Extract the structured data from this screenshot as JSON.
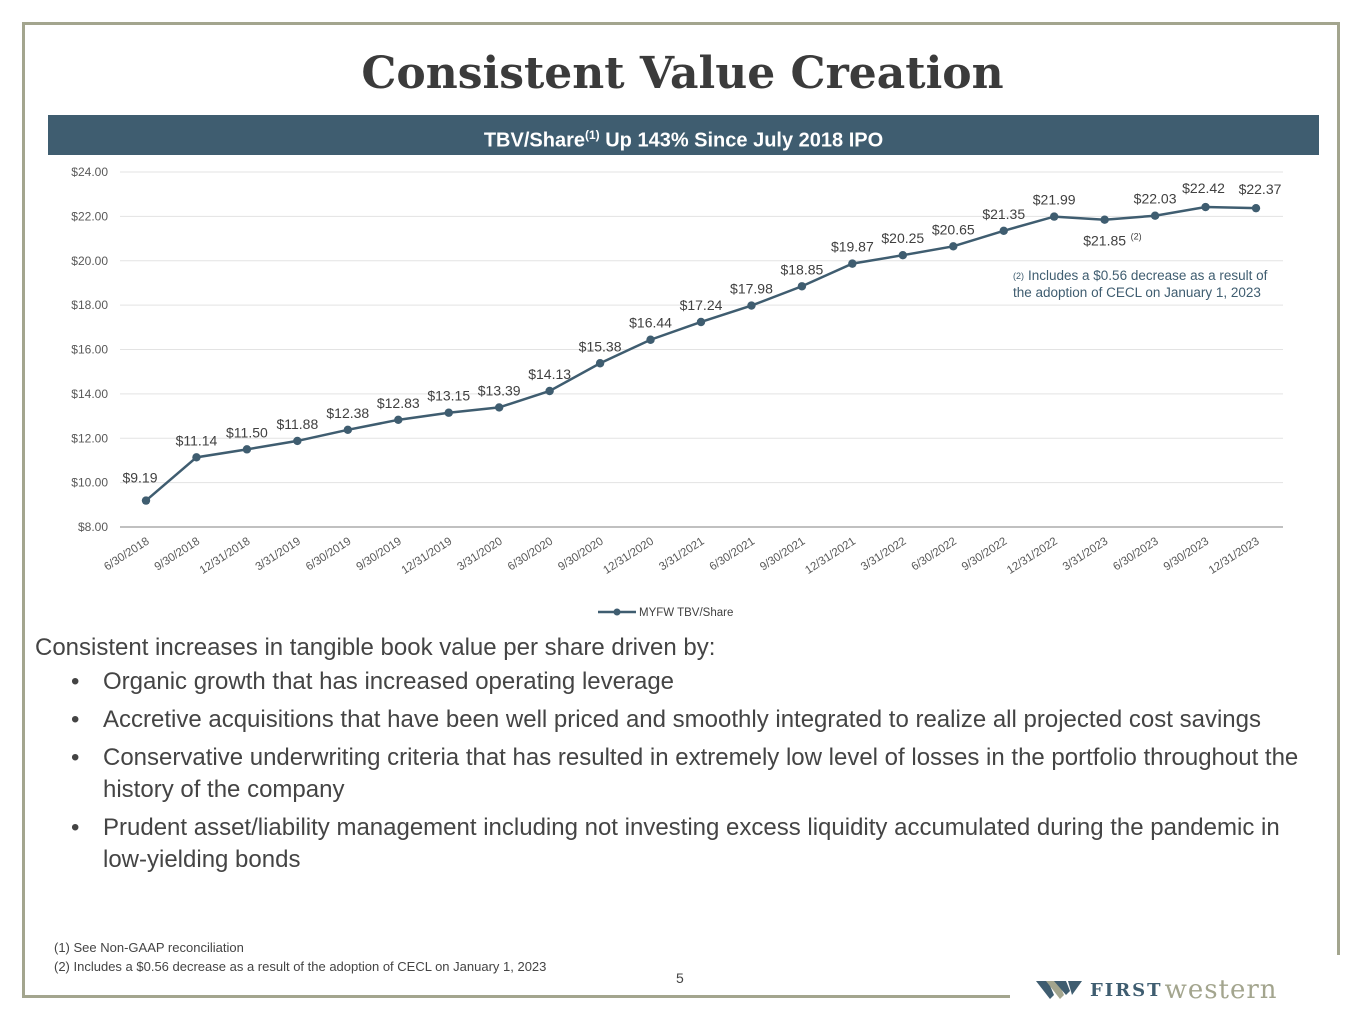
{
  "title": "Consistent Value Creation",
  "banner": {
    "prefix": "TBV/Share",
    "sup": "(1)",
    "suffix": " Up 143% Since July 2018 IPO"
  },
  "chart_data": {
    "type": "line",
    "title": "TBV/Share Up 143% Since July 2018 IPO",
    "xlabel": "",
    "ylabel": "",
    "ylim": [
      8,
      24
    ],
    "y_ticks": [
      "$8.00",
      "$10.00",
      "$12.00",
      "$14.00",
      "$16.00",
      "$18.00",
      "$20.00",
      "$22.00",
      "$24.00"
    ],
    "y_tick_values": [
      8,
      10,
      12,
      14,
      16,
      18,
      20,
      22,
      24
    ],
    "categories": [
      "6/30/2018",
      "9/30/2018",
      "12/31/2018",
      "3/31/2019",
      "6/30/2019",
      "9/30/2019",
      "12/31/2019",
      "3/31/2020",
      "6/30/2020",
      "9/30/2020",
      "12/31/2020",
      "3/31/2021",
      "6/30/2021",
      "9/30/2021",
      "12/31/2021",
      "3/31/2022",
      "6/30/2022",
      "9/30/2022",
      "12/31/2022",
      "3/31/2023",
      "6/30/2023",
      "9/30/2023",
      "12/31/2023"
    ],
    "series": [
      {
        "name": "MYFW TBV/Share",
        "color": "#3f5d70",
        "values": [
          9.19,
          11.14,
          11.5,
          11.88,
          12.38,
          12.83,
          13.15,
          13.39,
          14.13,
          15.38,
          16.44,
          17.24,
          17.98,
          18.85,
          19.87,
          20.25,
          20.65,
          21.35,
          21.99,
          21.85,
          22.03,
          22.42,
          22.37
        ],
        "labels": [
          "$9.19",
          "$11.14",
          "$11.50",
          "$11.88",
          "$12.38",
          "$12.83",
          "$13.15",
          "$13.39",
          "$14.13",
          "$15.38",
          "$16.44",
          "$17.24",
          "$17.98",
          "$18.85",
          "$19.87",
          "$20.25",
          "$20.65",
          "$21.35",
          "$21.99",
          "$21.85",
          "$22.03",
          "$22.42",
          "$22.37"
        ]
      }
    ],
    "label_superscript": {
      "index": 19,
      "text": "(2)"
    },
    "annotation": {
      "marker": "(2)",
      "line1": "Includes a $0.56 decrease as a result of",
      "line2": "the adoption of CECL on January 1, 2023",
      "color": "#3f5d70"
    },
    "legend": {
      "label": "MYFW TBV/Share",
      "position": "bottom"
    },
    "grid": true
  },
  "body": {
    "intro": "Consistent increases in tangible book value per share driven by:",
    "bullet_char": "•",
    "bullets": [
      "Organic growth that has increased operating leverage",
      "Accretive acquisitions that have been well priced and smoothly integrated to realize all projected cost savings",
      "Conservative underwriting criteria that has resulted in extremely low level of losses in the portfolio throughout the history of the company",
      "Prudent asset/liability management including not investing excess liquidity accumulated during the pandemic in low-yielding bonds"
    ]
  },
  "footnotes": [
    "(1)  See Non-GAAP reconciliation",
    "(2)  Includes a $0.56 decrease as a result of the adoption of CECL on January 1, 2023"
  ],
  "page_number": "5",
  "logo": {
    "first": "FIRST",
    "western": "western",
    "primary_color": "#3f5d70",
    "secondary_color": "#a3a58e"
  }
}
